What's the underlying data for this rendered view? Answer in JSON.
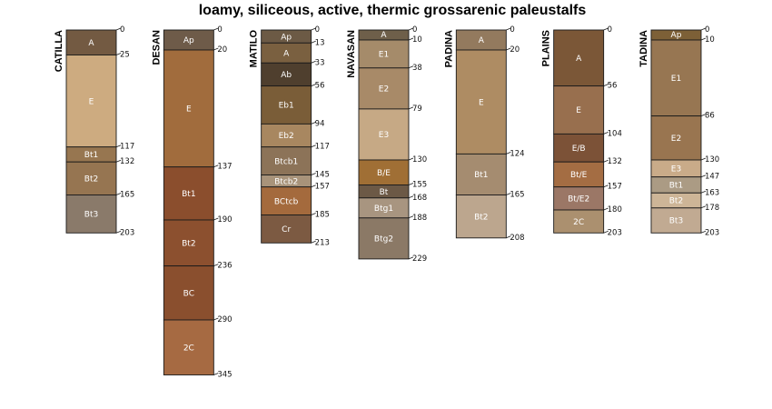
{
  "chart_data": {
    "type": "soil-profile-sketch",
    "title": "loamy, siliceous, active, thermic grossarenic paleustalfs",
    "depth_units": "cm",
    "max_depth": 345,
    "profiles": [
      {
        "name": "CATILLA",
        "horizons": [
          {
            "name": "A",
            "top": 0,
            "bottom": 25,
            "color": "#735a42"
          },
          {
            "name": "E",
            "top": 25,
            "bottom": 117,
            "color": "#cdab80"
          },
          {
            "name": "Bt1",
            "top": 117,
            "bottom": 132,
            "color": "#977650"
          },
          {
            "name": "Bt2",
            "top": 132,
            "bottom": 165,
            "color": "#967551"
          },
          {
            "name": "Bt3",
            "top": 165,
            "bottom": 203,
            "color": "#8a7a6a"
          }
        ]
      },
      {
        "name": "DESAN",
        "horizons": [
          {
            "name": "Ap",
            "top": 0,
            "bottom": 20,
            "color": "#6e5b49"
          },
          {
            "name": "E",
            "top": 20,
            "bottom": 137,
            "color": "#a16c3d"
          },
          {
            "name": "Bt1",
            "top": 137,
            "bottom": 190,
            "color": "#8b4e2d"
          },
          {
            "name": "Bt2",
            "top": 190,
            "bottom": 236,
            "color": "#8c502f"
          },
          {
            "name": "BC",
            "top": 236,
            "bottom": 290,
            "color": "#8a4f2e"
          },
          {
            "name": "2C",
            "top": 290,
            "bottom": 345,
            "color": "#a66a42"
          }
        ]
      },
      {
        "name": "MATILO",
        "horizons": [
          {
            "name": "Ap",
            "top": 0,
            "bottom": 13,
            "color": "#6c5a45"
          },
          {
            "name": "A",
            "top": 13,
            "bottom": 33,
            "color": "#7a6040"
          },
          {
            "name": "Ab",
            "top": 33,
            "bottom": 56,
            "color": "#4f3f2e"
          },
          {
            "name": "Eb1",
            "top": 56,
            "bottom": 94,
            "color": "#7a5d38"
          },
          {
            "name": "Eb2",
            "top": 94,
            "bottom": 117,
            "color": "#a88760"
          },
          {
            "name": "Btcb1",
            "top": 117,
            "bottom": 145,
            "color": "#8c7358"
          },
          {
            "name": "Btcb2",
            "top": 145,
            "bottom": 157,
            "color": "#a8937a"
          },
          {
            "name": "BCtcb",
            "top": 157,
            "bottom": 185,
            "color": "#a46a3d"
          },
          {
            "name": "Cr",
            "top": 185,
            "bottom": 213,
            "color": "#7c5a42"
          }
        ]
      },
      {
        "name": "NAVASAN",
        "horizons": [
          {
            "name": "A",
            "top": 0,
            "bottom": 10,
            "color": "#6e5f4a"
          },
          {
            "name": "E1",
            "top": 10,
            "bottom": 38,
            "color": "#a58b6a"
          },
          {
            "name": "E2",
            "top": 38,
            "bottom": 79,
            "color": "#a88a68"
          },
          {
            "name": "E3",
            "top": 79,
            "bottom": 130,
            "color": "#c6a985"
          },
          {
            "name": "B/E",
            "top": 130,
            "bottom": 155,
            "color": "#a06f35"
          },
          {
            "name": "Bt",
            "top": 155,
            "bottom": 168,
            "color": "#6c5946"
          },
          {
            "name": "Btg1",
            "top": 168,
            "bottom": 188,
            "color": "#a89580"
          },
          {
            "name": "Btg2",
            "top": 188,
            "bottom": 229,
            "color": "#8b7966"
          }
        ]
      },
      {
        "name": "PADINA",
        "horizons": [
          {
            "name": "A",
            "top": 0,
            "bottom": 20,
            "color": "#937a5e"
          },
          {
            "name": "E",
            "top": 20,
            "bottom": 124,
            "color": "#ae8c63"
          },
          {
            "name": "Bt1",
            "top": 124,
            "bottom": 165,
            "color": "#a58c70"
          },
          {
            "name": "Bt2",
            "top": 165,
            "bottom": 208,
            "color": "#bca68e"
          }
        ]
      },
      {
        "name": "PLAINS",
        "horizons": [
          {
            "name": "A",
            "top": 0,
            "bottom": 56,
            "color": "#7b5737"
          },
          {
            "name": "E",
            "top": 56,
            "bottom": 104,
            "color": "#986f4e"
          },
          {
            "name": "E/B",
            "top": 104,
            "bottom": 132,
            "color": "#7c5237"
          },
          {
            "name": "Bt/E",
            "top": 132,
            "bottom": 157,
            "color": "#a46d43"
          },
          {
            "name": "Bt/E2",
            "top": 157,
            "bottom": 180,
            "color": "#9b7766"
          },
          {
            "name": "2C",
            "top": 180,
            "bottom": 203,
            "color": "#ab906f"
          }
        ]
      },
      {
        "name": "TADINA",
        "horizons": [
          {
            "name": "Ap",
            "top": 0,
            "bottom": 10,
            "color": "#7d6037"
          },
          {
            "name": "E1",
            "top": 10,
            "bottom": 86,
            "color": "#977652"
          },
          {
            "name": "E2",
            "top": 86,
            "bottom": 130,
            "color": "#997550"
          },
          {
            "name": "E3",
            "top": 130,
            "bottom": 147,
            "color": "#c9ab89"
          },
          {
            "name": "Bt1",
            "top": 147,
            "bottom": 163,
            "color": "#ab9b84"
          },
          {
            "name": "Bt2",
            "top": 163,
            "bottom": 178,
            "color": "#cdb597"
          },
          {
            "name": "Bt3",
            "top": 178,
            "bottom": 203,
            "color": "#c1aa92"
          }
        ]
      }
    ]
  }
}
